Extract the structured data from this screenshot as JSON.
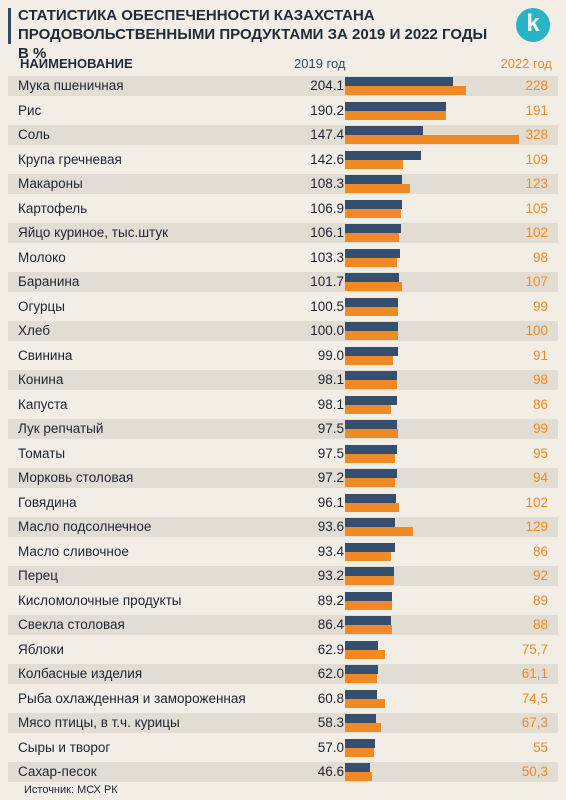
{
  "header": {
    "title": "СТАТИСТИКА ОБЕСПЕЧЕННОСТИ КАЗАХСТАНА ПРОДОВОЛЬСТВЕННЫМИ ПРОДУКТАМИ ЗА 2019 И 2022 ГОДЫ В %",
    "logo_letter": "k"
  },
  "columns": {
    "name": "НАИМЕНОВАНИЕ",
    "year_2019": "2019 год",
    "year_2022": "2022 год"
  },
  "colors": {
    "series_2019": "#34506e",
    "series_2022": "#f08a24",
    "background": "#f2eee6",
    "logo": "#27b5c6"
  },
  "source": "Источник: МСХ РК",
  "chart_data": {
    "type": "bar",
    "orientation": "horizontal",
    "title": "СТАТИСТИКА ОБЕСПЕЧЕННОСТИ КАЗАХСТАНА ПРОДОВОЛЬСТВЕННЫМИ ПРОДУКТАМИ ЗА 2019 И 2022 ГОДЫ В %",
    "categories": [
      "Мука пшеничная",
      "Рис",
      "Соль",
      "Крупа гречневая",
      "Макароны",
      "Картофель",
      "Яйцо куриное, тыс.штук",
      "Молоко",
      "Баранина",
      "Огурцы",
      "Хлеб",
      "Свинина",
      "Конина",
      "Капуста",
      "Лук репчатый",
      "Томаты",
      "Морковь столовая",
      "Говядина",
      "Масло подсолнечное",
      "Масло сливочное",
      "Перец",
      "Кисломолочные продукты",
      "Свекла столовая",
      "Яблоки",
      "Колбасные изделия",
      "Рыба охлажденная и замороженная",
      "Мясо птицы, в т.ч. курицы",
      "Сыры и творог",
      "Сахар-песок"
    ],
    "series": [
      {
        "name": "2019 год",
        "values": [
          204.1,
          190.2,
          147.4,
          142.6,
          108.3,
          106.9,
          106.1,
          103.3,
          101.7,
          100.5,
          100.0,
          99.0,
          98.1,
          98.1,
          97.5,
          97.5,
          97.2,
          96.1,
          93.6,
          93.4,
          93.2,
          89.2,
          86.4,
          62.9,
          62.0,
          60.8,
          58.3,
          57.0,
          46.6
        ],
        "labels": [
          "204.1",
          "190.2",
          "147.4",
          "142.6",
          "108.3",
          "106.9",
          "106.1",
          "103.3",
          "101.7",
          "100.5",
          "100.0",
          "99.0",
          "98.1",
          "98.1",
          "97.5",
          "97.5",
          "97.2",
          "96.1",
          "93.6",
          "93.4",
          "93.2",
          "89.2",
          "86.4",
          "62.9",
          "62.0",
          "60.8",
          "58.3",
          "57.0",
          "46.6"
        ]
      },
      {
        "name": "2022 год",
        "values": [
          228,
          191,
          328,
          109,
          123,
          105,
          102,
          98,
          107,
          99,
          100,
          91,
          98,
          86,
          99,
          95,
          94,
          102,
          129,
          86,
          92,
          89,
          88,
          75.7,
          61.1,
          74.5,
          67.3,
          55,
          50.3
        ],
        "labels": [
          "228",
          "191",
          "328",
          "109",
          "123",
          "105",
          "102",
          "98",
          "107",
          "99",
          "100",
          "91",
          "98",
          "86",
          "99",
          "95",
          "94",
          "102",
          "129",
          "86",
          "92",
          "89",
          "88",
          "75,7",
          "61,1",
          "74,5",
          "67,3",
          "55",
          "50,3"
        ]
      }
    ],
    "xlim": [
      0,
      328
    ]
  }
}
